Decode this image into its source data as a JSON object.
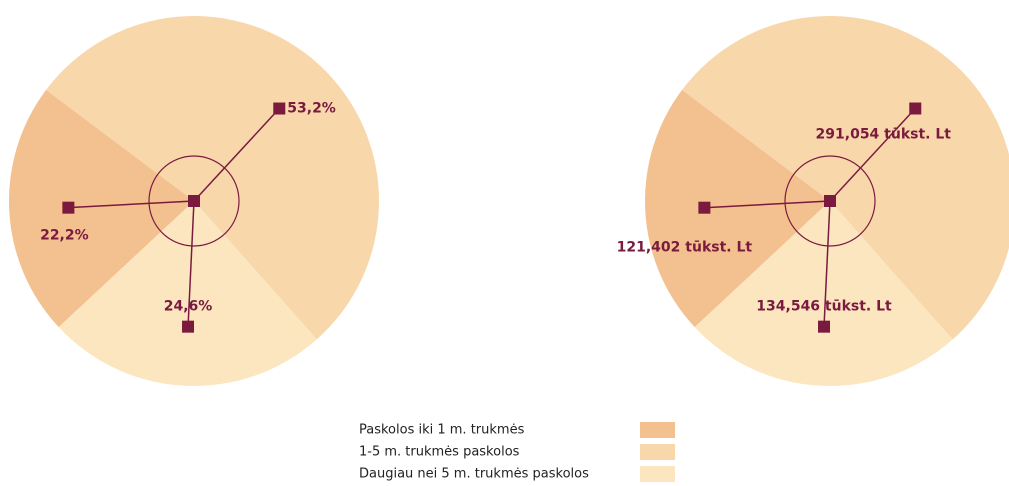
{
  "chart_data": [
    {
      "type": "pie",
      "categories": [
        "Paskolos iki 1 m. trukmės",
        "1-5 m. trukmės paskolos",
        "Daugiau nei 5 m. trukmės paskolos"
      ],
      "colors": [
        "#f3c08f",
        "#f8d7ab",
        "#fce6bf"
      ],
      "values": [
        22.2,
        53.2,
        24.6
      ],
      "value_labels": [
        "22,2%",
        "53,2%",
        "24,6%"
      ]
    },
    {
      "type": "pie",
      "values": [
        121.402,
        291.054,
        134.546
      ],
      "value_labels": [
        "121,402 tūkst. Lt",
        "291,054 tūkst. Lt",
        "134,546 tūkst. Lt"
      ]
    }
  ]
}
